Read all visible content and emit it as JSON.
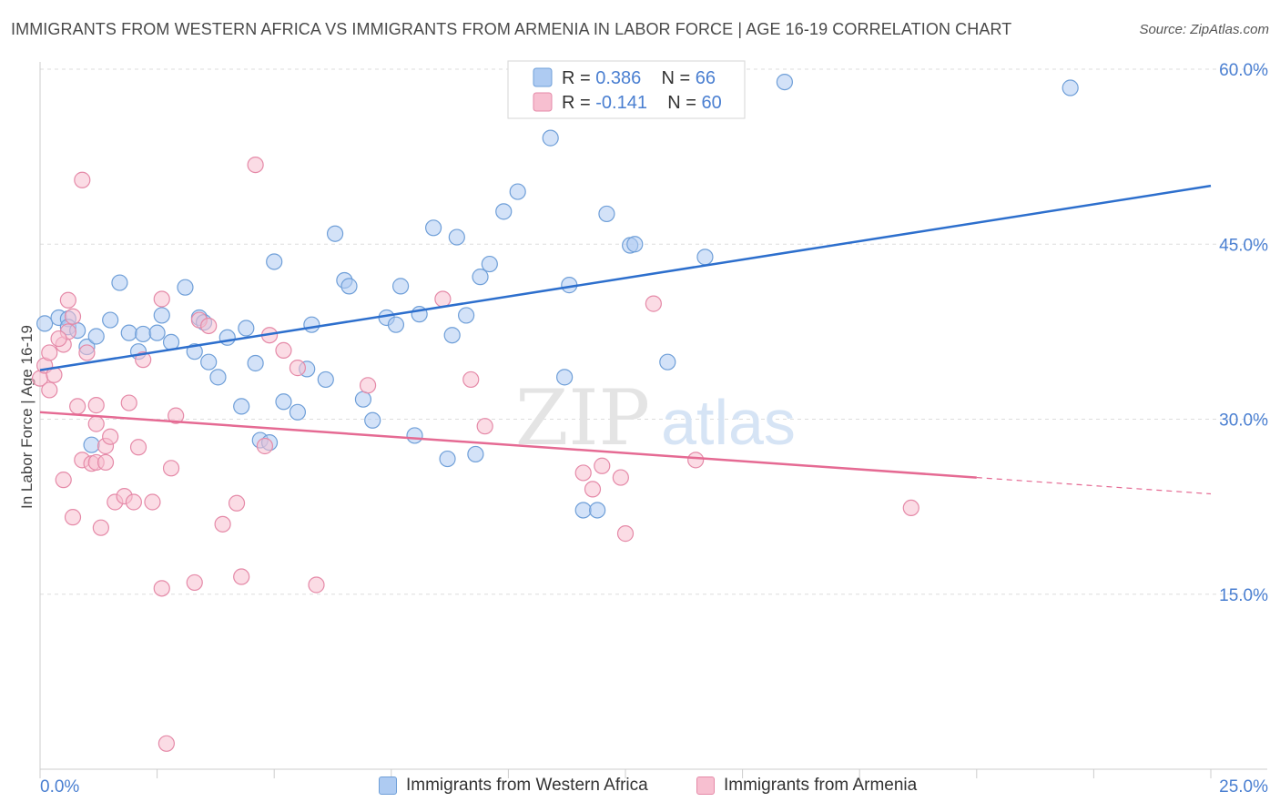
{
  "title": "IMMIGRANTS FROM WESTERN AFRICA VS IMMIGRANTS FROM ARMENIA IN LABOR FORCE | AGE 16-19 CORRELATION CHART",
  "source": "Source: ZipAtlas.com",
  "watermark": {
    "zip": "ZIP",
    "atlas": "atlas"
  },
  "colors": {
    "blue_fill": "#aecbf2",
    "blue_stroke": "#6f9fd8",
    "blue_line": "#2d6fcd",
    "pink_fill": "#f7bfd0",
    "pink_stroke": "#e58aa8",
    "pink_line": "#e56a93",
    "axis_label": "#4a7fd1",
    "grid": "#dddddd"
  },
  "chart_data": {
    "type": "scatter",
    "title": "IMMIGRANTS FROM WESTERN AFRICA VS IMMIGRANTS FROM ARMENIA IN LABOR FORCE | AGE 16-19 CORRELATION CHART",
    "xlabel": "",
    "ylabel": "In Labor Force | Age 16-19",
    "xlim": [
      0,
      25
    ],
    "ylim": [
      0,
      60
    ],
    "x_tick_labels": [
      "0.0%",
      "25.0%"
    ],
    "y_ticks": [
      15,
      30,
      45,
      60
    ],
    "y_tick_labels": [
      "15.0%",
      "30.0%",
      "45.0%",
      "60.0%"
    ],
    "grid": true,
    "legend_position": "top-center",
    "stats": [
      {
        "r_label": "R = ",
        "r_value": "0.386",
        "n_label": "N = ",
        "n_value": "66"
      },
      {
        "r_label": "R = ",
        "r_value": "-0.141",
        "n_label": "N = ",
        "n_value": "60"
      }
    ],
    "series": [
      {
        "name": "Immigrants from Western Africa",
        "trend": {
          "x": [
            0,
            25
          ],
          "y": [
            34.2,
            50.0
          ],
          "solid_until": 25
        },
        "points": [
          [
            0.1,
            38.2
          ],
          [
            0.4,
            38.7
          ],
          [
            0.6,
            38.6
          ],
          [
            0.6,
            37.9
          ],
          [
            0.8,
            37.6
          ],
          [
            1.0,
            36.2
          ],
          [
            1.2,
            37.1
          ],
          [
            1.1,
            27.8
          ],
          [
            1.5,
            38.5
          ],
          [
            1.7,
            41.7
          ],
          [
            1.9,
            37.4
          ],
          [
            2.1,
            35.8
          ],
          [
            2.2,
            37.3
          ],
          [
            2.5,
            37.4
          ],
          [
            2.6,
            38.9
          ],
          [
            2.8,
            36.6
          ],
          [
            3.1,
            41.3
          ],
          [
            3.4,
            38.7
          ],
          [
            3.3,
            35.8
          ],
          [
            3.5,
            38.3
          ],
          [
            3.6,
            34.9
          ],
          [
            3.8,
            33.6
          ],
          [
            4.0,
            37.0
          ],
          [
            4.3,
            31.1
          ],
          [
            4.4,
            37.8
          ],
          [
            4.6,
            34.8
          ],
          [
            4.7,
            28.2
          ],
          [
            4.9,
            28.0
          ],
          [
            5.0,
            43.5
          ],
          [
            5.2,
            31.5
          ],
          [
            5.5,
            30.6
          ],
          [
            5.7,
            34.3
          ],
          [
            5.8,
            38.1
          ],
          [
            6.1,
            33.4
          ],
          [
            6.3,
            45.9
          ],
          [
            6.5,
            41.9
          ],
          [
            6.6,
            41.4
          ],
          [
            6.9,
            31.7
          ],
          [
            7.1,
            29.9
          ],
          [
            7.4,
            38.7
          ],
          [
            7.6,
            38.1
          ],
          [
            7.7,
            41.4
          ],
          [
            8.0,
            28.6
          ],
          [
            8.1,
            39.0
          ],
          [
            8.4,
            46.4
          ],
          [
            8.7,
            26.6
          ],
          [
            8.8,
            37.2
          ],
          [
            8.9,
            45.6
          ],
          [
            9.1,
            38.9
          ],
          [
            9.3,
            27.0
          ],
          [
            9.4,
            42.2
          ],
          [
            9.6,
            43.3
          ],
          [
            9.9,
            47.8
          ],
          [
            10.2,
            49.5
          ],
          [
            10.9,
            54.1
          ],
          [
            11.2,
            33.6
          ],
          [
            11.3,
            41.5
          ],
          [
            11.6,
            22.2
          ],
          [
            11.9,
            22.2
          ],
          [
            12.1,
            47.6
          ],
          [
            12.6,
            44.9
          ],
          [
            12.7,
            45.0
          ],
          [
            13.4,
            34.9
          ],
          [
            14.2,
            43.9
          ],
          [
            15.9,
            58.9
          ],
          [
            22.0,
            58.4
          ]
        ]
      },
      {
        "name": "Immigrants from Armenia",
        "trend": {
          "x": [
            0,
            25
          ],
          "y": [
            30.6,
            23.6
          ],
          "solid_until": 20.0
        },
        "points": [
          [
            0.0,
            33.5
          ],
          [
            0.1,
            34.6
          ],
          [
            0.2,
            35.7
          ],
          [
            0.2,
            32.5
          ],
          [
            0.3,
            33.8
          ],
          [
            0.5,
            36.4
          ],
          [
            0.5,
            24.8
          ],
          [
            0.6,
            40.2
          ],
          [
            0.6,
            37.5
          ],
          [
            0.7,
            38.8
          ],
          [
            0.7,
            21.6
          ],
          [
            0.8,
            31.1
          ],
          [
            0.9,
            26.5
          ],
          [
            0.9,
            50.5
          ],
          [
            1.0,
            35.7
          ],
          [
            1.1,
            26.2
          ],
          [
            1.2,
            26.3
          ],
          [
            1.2,
            29.6
          ],
          [
            1.2,
            31.2
          ],
          [
            1.3,
            20.7
          ],
          [
            1.4,
            26.3
          ],
          [
            1.4,
            27.7
          ],
          [
            1.5,
            28.5
          ],
          [
            1.6,
            22.9
          ],
          [
            1.8,
            23.4
          ],
          [
            1.9,
            31.4
          ],
          [
            2.0,
            22.9
          ],
          [
            2.1,
            27.6
          ],
          [
            2.2,
            35.1
          ],
          [
            2.4,
            22.9
          ],
          [
            2.6,
            15.5
          ],
          [
            2.6,
            40.3
          ],
          [
            2.7,
            2.2
          ],
          [
            2.8,
            25.8
          ],
          [
            2.9,
            30.3
          ],
          [
            3.3,
            16.0
          ],
          [
            3.4,
            38.5
          ],
          [
            3.6,
            38.0
          ],
          [
            3.9,
            21.0
          ],
          [
            4.2,
            22.8
          ],
          [
            4.3,
            16.5
          ],
          [
            4.6,
            51.8
          ],
          [
            4.8,
            27.7
          ],
          [
            4.9,
            37.2
          ],
          [
            5.2,
            35.9
          ],
          [
            5.5,
            34.4
          ],
          [
            5.9,
            15.8
          ],
          [
            7.0,
            32.9
          ],
          [
            8.6,
            40.3
          ],
          [
            9.2,
            33.4
          ],
          [
            9.5,
            29.4
          ],
          [
            11.6,
            25.4
          ],
          [
            11.8,
            24.0
          ],
          [
            12.0,
            26.0
          ],
          [
            12.4,
            25.0
          ],
          [
            12.5,
            20.2
          ],
          [
            13.1,
            39.9
          ],
          [
            14.0,
            26.5
          ],
          [
            18.6,
            22.4
          ],
          [
            0.4,
            36.9
          ]
        ]
      }
    ]
  }
}
